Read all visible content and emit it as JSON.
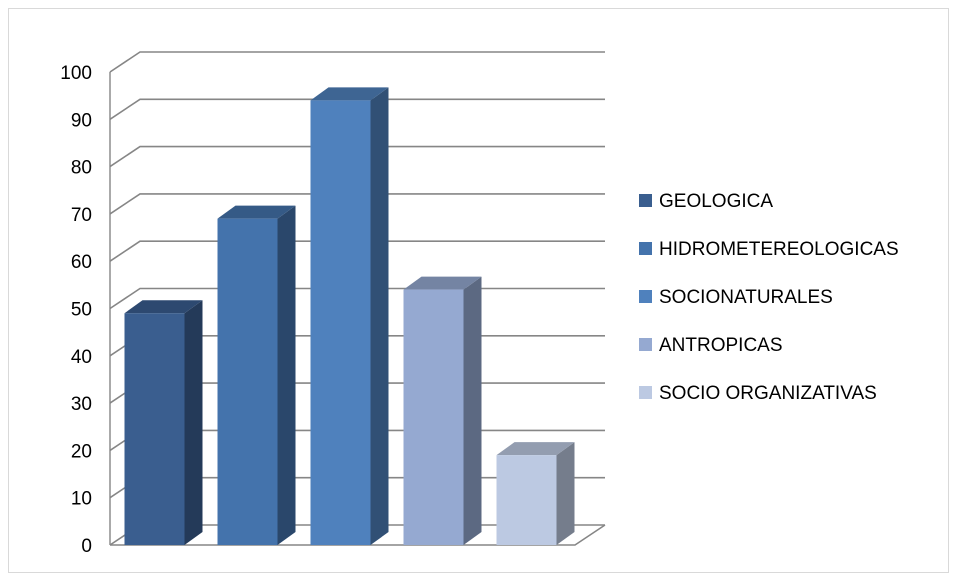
{
  "chart_data": {
    "type": "bar",
    "style": "3d-column",
    "categories": [
      "GEOLOGICA",
      "HIDROMETEREOLOGICAS",
      "SOCIONATURALES",
      "ANTROPICAS",
      "SOCIO ORGANIZATIVAS"
    ],
    "values": [
      49,
      69,
      94,
      54,
      19
    ],
    "colors": [
      "#3A5E8F",
      "#4473AC",
      "#4F81BD",
      "#95A9D1",
      "#BCC9E2"
    ],
    "title": "",
    "xlabel": "",
    "ylabel": "",
    "ylim": [
      0,
      100
    ],
    "yticks": [
      "0",
      "10",
      "20",
      "30",
      "40",
      "50",
      "60",
      "70",
      "80",
      "90",
      "100"
    ],
    "grid": true,
    "legend": {
      "position": "right",
      "entries": [
        "GEOLOGICA",
        "HIDROMETEREOLOGICAS",
        "SOCIONATURALES",
        "ANTROPICAS",
        "SOCIO ORGANIZATIVAS"
      ]
    }
  }
}
